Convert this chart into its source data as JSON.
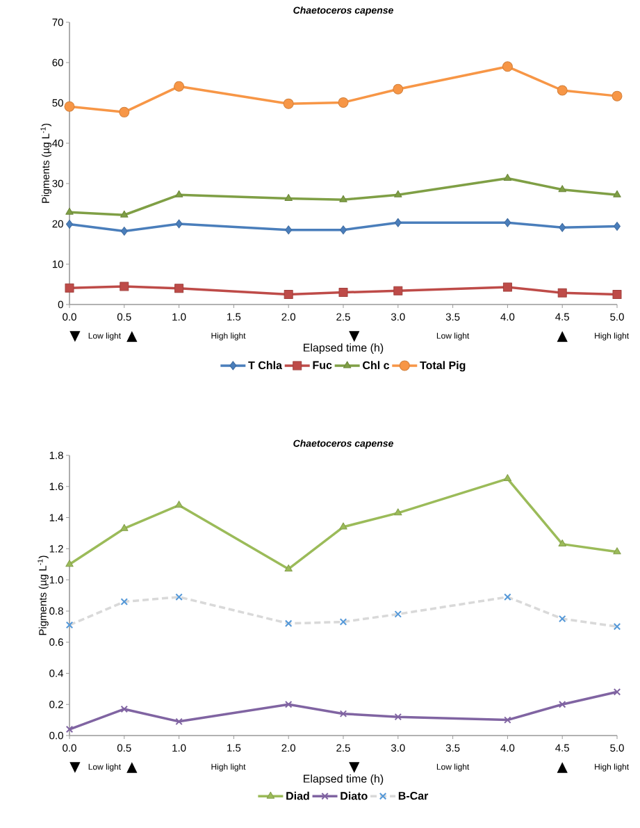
{
  "chart_data": [
    {
      "type": "line",
      "title": "Chaetoceros capense",
      "xlabel": "Elapsed time (h)",
      "ylabel": "Pigments (µg L$^{-1}$)",
      "x": [
        0,
        0.5,
        1,
        2,
        2.5,
        3,
        4,
        4.5,
        5
      ],
      "xlim": [
        0,
        5
      ],
      "xticks": [
        {
          "value": 0,
          "label": "0.0"
        },
        {
          "value": 0.5,
          "label": "0.5"
        },
        {
          "value": 1,
          "label": "1.0"
        },
        {
          "value": 1.5,
          "label": "1.5"
        },
        {
          "value": 2,
          "label": "2.0"
        },
        {
          "value": 2.5,
          "label": "2.5"
        },
        {
          "value": 3,
          "label": "3.0"
        },
        {
          "value": 3.5,
          "label": "3.5"
        },
        {
          "value": 4,
          "label": "4.0"
        },
        {
          "value": 4.5,
          "label": "4.5"
        },
        {
          "value": 5,
          "label": "5.0"
        }
      ],
      "ylim": [
        0,
        70
      ],
      "yticks": [
        0,
        10,
        20,
        30,
        40,
        50,
        60,
        70
      ],
      "series": [
        {
          "name": "T Chla",
          "color": "#4a7ebb",
          "marker": "diamond",
          "values": [
            19.9,
            18.2,
            20.0,
            18.5,
            18.5,
            20.3,
            20.3,
            19.1,
            19.4
          ]
        },
        {
          "name": "Fuc",
          "color": "#be4b48",
          "marker": "square",
          "values": [
            4.1,
            4.5,
            4.0,
            2.5,
            3.0,
            3.4,
            4.3,
            2.9,
            2.5
          ]
        },
        {
          "name": "Chl c",
          "color": "#7f9f45",
          "marker": "triangle",
          "values": [
            22.9,
            22.2,
            27.2,
            26.3,
            26.0,
            27.2,
            31.3,
            28.5,
            27.2
          ]
        },
        {
          "name": "Total Pig",
          "color": "#f79646",
          "marker": "circle",
          "values": [
            49.1,
            47.7,
            54.1,
            49.8,
            50.1,
            53.4,
            59.0,
            53.1,
            51.7
          ]
        }
      ],
      "annotations": [
        "▼",
        "Low light",
        "▲",
        "High light",
        "▼",
        "Low light",
        "▲",
        "High light"
      ],
      "grid": false,
      "legend": "bottom"
    },
    {
      "type": "line",
      "title": "Chaetoceros capense",
      "xlabel": "Elapsed time (h)",
      "ylabel": "Pigments (µg L$^{-1}$)",
      "x": [
        0,
        0.5,
        1,
        2,
        2.5,
        3,
        4,
        4.5,
        5
      ],
      "xlim": [
        0,
        5
      ],
      "xticks": [
        {
          "value": 0,
          "label": "0.0"
        },
        {
          "value": 0.5,
          "label": "0.5"
        },
        {
          "value": 1,
          "label": "1.0"
        },
        {
          "value": 1.5,
          "label": "1.5"
        },
        {
          "value": 2,
          "label": "2.0"
        },
        {
          "value": 2.5,
          "label": "2.5"
        },
        {
          "value": 3,
          "label": "3.0"
        },
        {
          "value": 3.5,
          "label": "3.5"
        },
        {
          "value": 4,
          "label": "4.0"
        },
        {
          "value": 4.5,
          "label": "4.5"
        },
        {
          "value": 5,
          "label": "5.0"
        }
      ],
      "ylim": [
        0,
        1.8
      ],
      "yticks": [
        {
          "value": 0,
          "label": "0.0"
        },
        {
          "value": 0.2,
          "label": "0.2"
        },
        {
          "value": 0.4,
          "label": "0.4"
        },
        {
          "value": 0.6,
          "label": "0.6"
        },
        {
          "value": 0.8,
          "label": "0.8"
        },
        {
          "value": 1,
          "label": "1.0"
        },
        {
          "value": 1.2,
          "label": "1.2"
        },
        {
          "value": 1.4,
          "label": "1.4"
        },
        {
          "value": 1.6,
          "label": "1.6"
        },
        {
          "value": 1.8,
          "label": "1.8"
        }
      ],
      "series": [
        {
          "name": "Diad",
          "color": "#9bbb59",
          "marker": "triangle",
          "values": [
            1.1,
            1.33,
            1.48,
            1.07,
            1.34,
            1.43,
            1.65,
            1.23,
            1.18
          ]
        },
        {
          "name": "Diato",
          "color": "#8064a2",
          "marker": "cross",
          "values": [
            0.04,
            0.17,
            0.09,
            0.2,
            0.14,
            0.12,
            0.1,
            0.2,
            0.28
          ]
        },
        {
          "name": "B-Car",
          "color": "#d9d9d9",
          "marker": "cross",
          "line_style": "dashed",
          "values": [
            0.71,
            0.86,
            0.89,
            0.72,
            0.73,
            0.78,
            0.89,
            0.75,
            0.7
          ]
        }
      ],
      "annotations": [
        "▼",
        "Low light",
        "▲",
        "High light",
        "▼",
        "Low light",
        "▲",
        "High light"
      ],
      "grid": false,
      "legend": "bottom"
    }
  ]
}
